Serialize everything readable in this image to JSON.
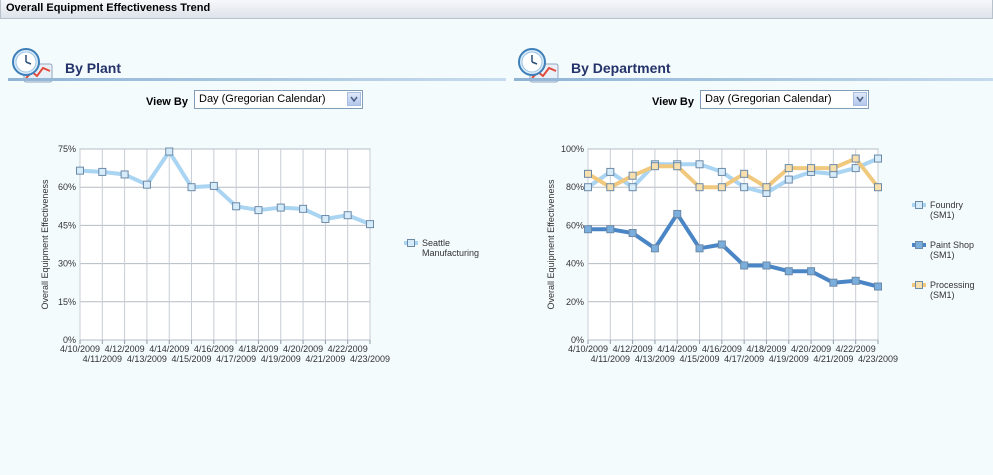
{
  "window": {
    "title": "Overall Equipment Effectiveness Trend"
  },
  "panels": [
    {
      "title": "By Plant",
      "view_by_label": "View By",
      "view_by_value": "Day (Gregorian Calendar)"
    },
    {
      "title": "By Department",
      "view_by_label": "View By",
      "view_by_value": "Day (Gregorian Calendar)"
    }
  ],
  "chart_data": [
    {
      "type": "line",
      "ylabel": "Overall Equipment Effectiveness",
      "ylim": [
        0,
        75
      ],
      "yticks": [
        "0%",
        "15%",
        "30%",
        "45%",
        "60%",
        "75%"
      ],
      "ytick_values": [
        0,
        15,
        30,
        45,
        60,
        75
      ],
      "x": [
        "4/10/2009",
        "4/11/2009",
        "4/12/2009",
        "4/13/2009",
        "4/14/2009",
        "4/15/2009",
        "4/16/2009",
        "4/17/2009",
        "4/18/2009",
        "4/19/2009",
        "4/20/2009",
        "4/21/2009",
        "4/22/2009",
        "4/23/2009"
      ],
      "series": [
        {
          "name": "Seattle Manufacturing",
          "color": "#a9d4f2",
          "marker_fill": "#d6ecfa",
          "values": [
            66.5,
            66,
            65,
            61,
            74,
            60,
            60.5,
            52.5,
            51,
            52,
            51.5,
            47.5,
            49,
            45.5
          ]
        }
      ],
      "legend": "right",
      "grid": true
    },
    {
      "type": "line",
      "ylabel": "Overall Equipment Effectiveness",
      "ylim": [
        0,
        100
      ],
      "yticks": [
        "0%",
        "20%",
        "40%",
        "60%",
        "80%",
        "100%"
      ],
      "ytick_values": [
        0,
        20,
        40,
        60,
        80,
        100
      ],
      "x": [
        "4/10/2009",
        "4/11/2009",
        "4/12/2009",
        "4/13/2009",
        "4/14/2009",
        "4/15/2009",
        "4/16/2009",
        "4/17/2009",
        "4/18/2009",
        "4/19/2009",
        "4/20/2009",
        "4/21/2009",
        "4/22/2009",
        "4/23/2009"
      ],
      "series": [
        {
          "name": "Foundry (SM1)",
          "color": "#a9d4f2",
          "marker_fill": "#d6ecfa",
          "values": [
            80,
            88,
            80,
            92,
            92,
            92,
            88,
            80,
            77,
            84,
            88,
            87,
            90,
            95
          ]
        },
        {
          "name": "Paint Shop (SM1)",
          "color": "#4a86c5",
          "marker_fill": "#7aaedd",
          "values": [
            58,
            58,
            56,
            48,
            66,
            48,
            50,
            39,
            39,
            36,
            36,
            30,
            31,
            28
          ]
        },
        {
          "name": "Processing (SM1)",
          "color": "#f0c97f",
          "marker_fill": "#f7dfae",
          "values": [
            87,
            80,
            86,
            91,
            91,
            80,
            80,
            87,
            80,
            90,
            90,
            90,
            95,
            80
          ]
        }
      ],
      "legend": "right",
      "grid": true
    }
  ]
}
